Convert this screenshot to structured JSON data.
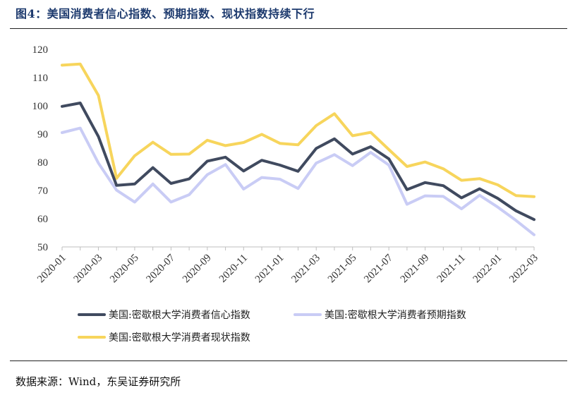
{
  "figure": {
    "title": "图4：美国消费者信心指数、预期指数、现状指数持续下行",
    "source": "数据来源：Wind，东吴证券研究所"
  },
  "chart_data": {
    "type": "line",
    "x": [
      "2020-01",
      "2020-02",
      "2020-03",
      "2020-04",
      "2020-05",
      "2020-06",
      "2020-07",
      "2020-08",
      "2020-09",
      "2020-10",
      "2020-11",
      "2020-12",
      "2021-01",
      "2021-02",
      "2021-03",
      "2021-04",
      "2021-05",
      "2021-06",
      "2021-07",
      "2021-08",
      "2021-09",
      "2021-10",
      "2021-11",
      "2021-12",
      "2022-01",
      "2022-02",
      "2022-03"
    ],
    "x_tick_labels": [
      "2020-01",
      "2020-03",
      "2020-05",
      "2020-07",
      "2020-09",
      "2020-11",
      "2021-01",
      "2021-03",
      "2021-05",
      "2021-07",
      "2021-09",
      "2021-11",
      "2022-01",
      "2022-03"
    ],
    "ylim": [
      50,
      120
    ],
    "y_ticks": [
      50,
      60,
      70,
      80,
      90,
      100,
      110,
      120
    ],
    "grid": false,
    "legend_position": "bottom",
    "series": [
      {
        "name": "美国:密歇根大学消费者信心指数",
        "color": "#404a5f",
        "values": [
          99.8,
          101.0,
          89.1,
          71.8,
          72.3,
          78.1,
          72.5,
          74.1,
          80.4,
          81.8,
          76.9,
          80.7,
          79.0,
          76.8,
          84.9,
          88.3,
          82.9,
          85.5,
          81.2,
          70.3,
          72.8,
          71.7,
          67.4,
          70.6,
          67.2,
          62.8,
          59.7
        ]
      },
      {
        "name": "美国:密歇根大学消费者预期指数",
        "color": "#c9ccf5",
        "values": [
          90.5,
          92.1,
          79.7,
          70.1,
          65.9,
          72.3,
          65.9,
          68.5,
          75.6,
          79.2,
          70.5,
          74.6,
          74.0,
          70.7,
          79.7,
          82.7,
          78.8,
          83.5,
          79.0,
          65.1,
          68.1,
          67.9,
          63.5,
          68.3,
          64.1,
          59.4,
          54.3
        ]
      },
      {
        "name": "美国:密歇根大学消费者现状指数",
        "color": "#f7d55c",
        "values": [
          114.4,
          114.8,
          103.7,
          74.3,
          82.3,
          87.1,
          82.8,
          82.9,
          87.8,
          85.9,
          87.0,
          89.9,
          86.7,
          86.2,
          93.0,
          97.2,
          89.4,
          90.6,
          84.5,
          78.5,
          80.1,
          77.7,
          73.6,
          74.2,
          72.0,
          68.2,
          67.8
        ]
      }
    ]
  }
}
